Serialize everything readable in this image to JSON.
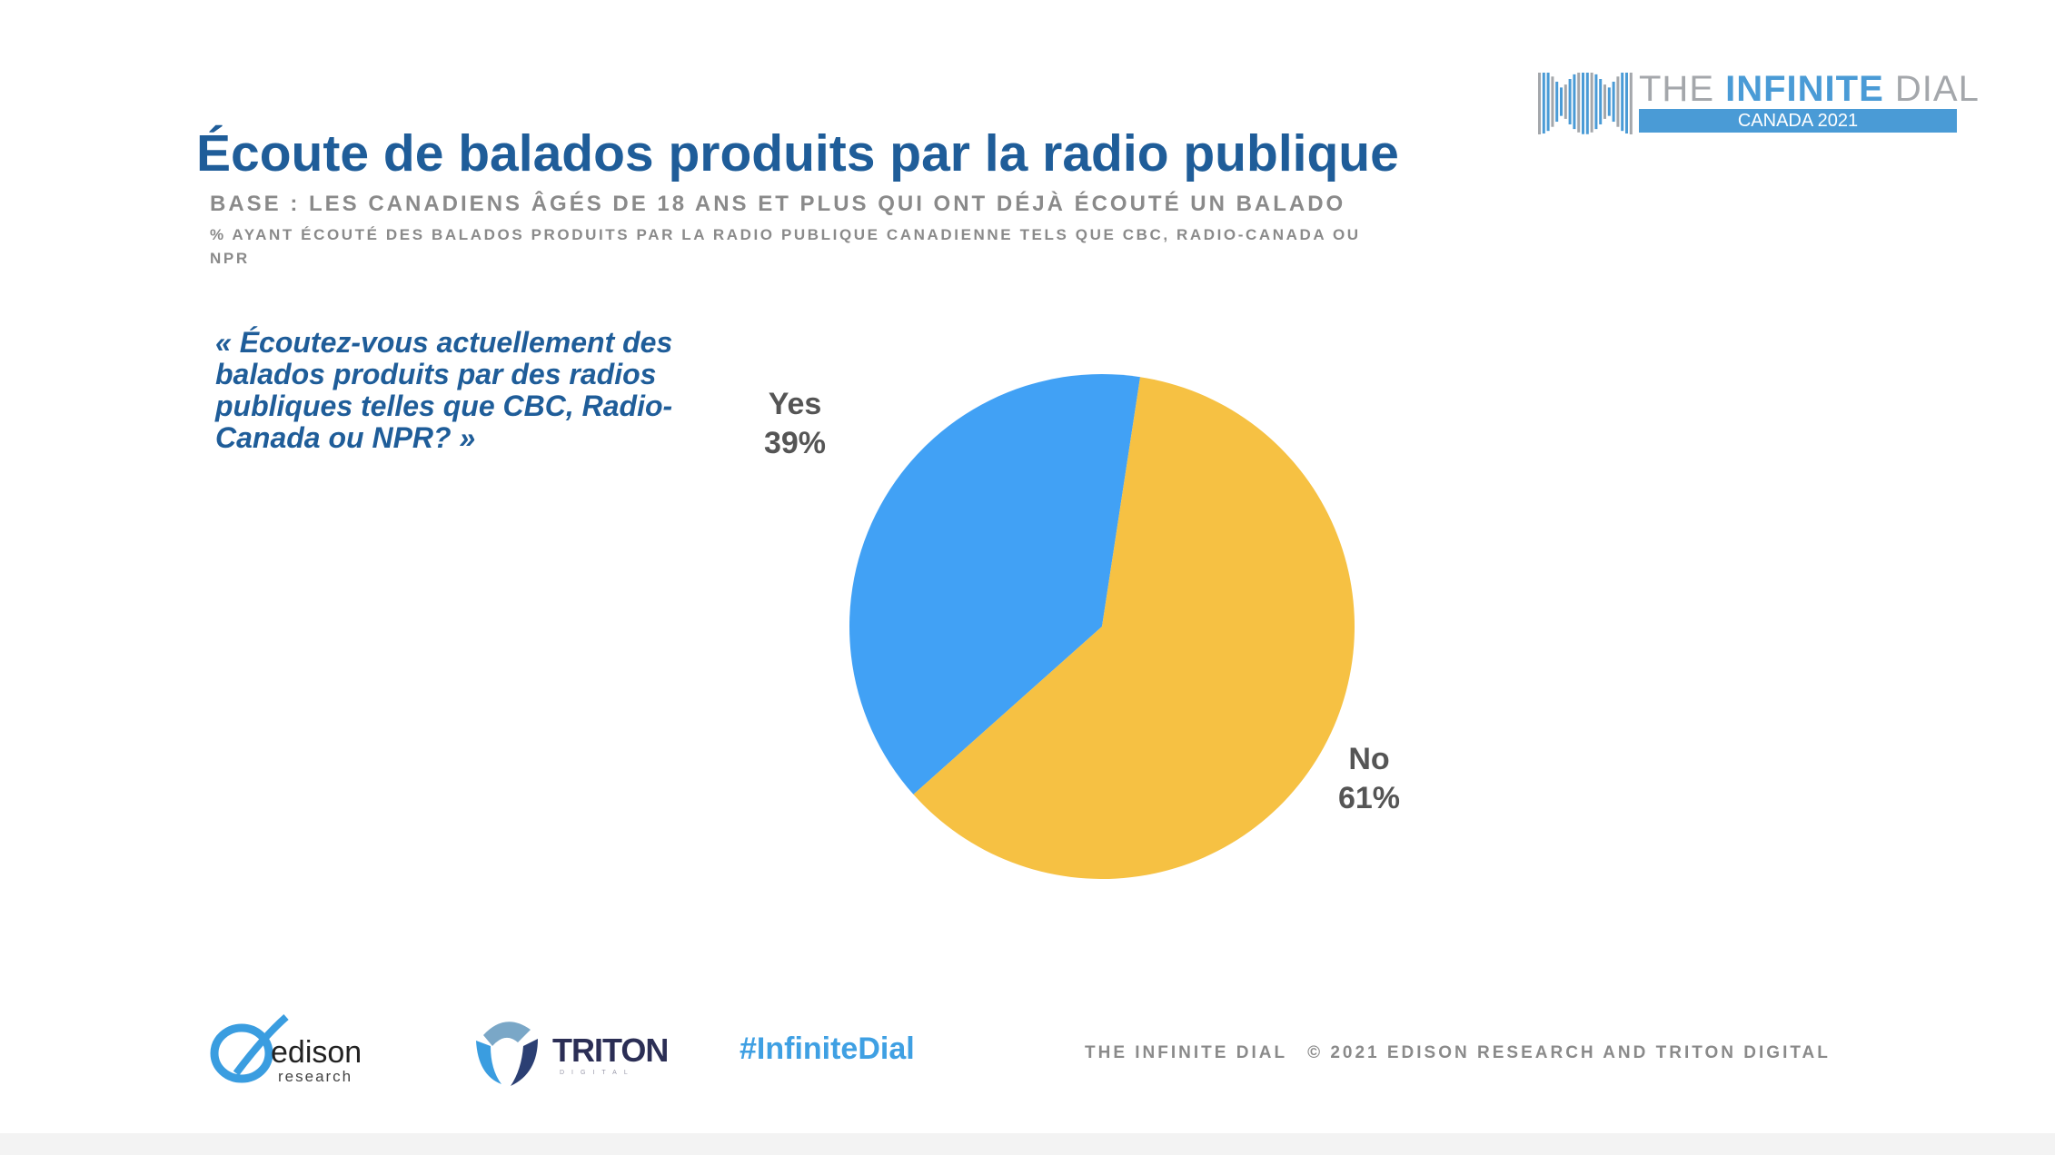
{
  "header": {
    "title": "Écoute de balados produits par la radio publique",
    "base": "BASE : LES CANADIENS ÂGÉS DE 18 ANS ET PLUS QUI ONT DÉJÀ ÉCOUTÉ UN BALADO",
    "description": "% AYANT ÉCOUTÉ DES BALADOS PRODUITS PAR LA RADIO PUBLIQUE CANADIENNE TELS QUE CBC, RADIO-CANADA OU NPR"
  },
  "logo": {
    "brand_light": "THE ",
    "brand_bold": "INFINITE",
    "brand_end": " DIAL",
    "edition": "CANADA 2021"
  },
  "question": "« Écoutez-vous actuellement des balados produits par des radios publiques telles que CBC, Radio-Canada ou NPR? »",
  "chart_data": {
    "type": "pie",
    "title": "Écoute de balados produits par la radio publique",
    "slices": [
      {
        "label": "Yes",
        "value": 39,
        "display": "39%",
        "color": "#41a1f5"
      },
      {
        "label": "No",
        "value": 61,
        "display": "61%",
        "color": "#f6c143"
      }
    ]
  },
  "footer": {
    "edison": "edison",
    "edison_sub": "research",
    "triton": "TRITON",
    "triton_sub": "DIGITAL",
    "hashtag": "#InfiniteDial",
    "left_text": "THE INFINITE DIAL",
    "copyright": "© 2021 EDISON RESEARCH AND TRITON DIGITAL"
  }
}
